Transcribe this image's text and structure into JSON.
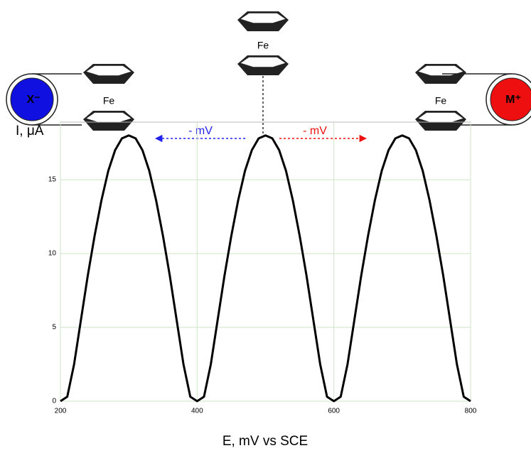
{
  "chart_data": {
    "type": "line",
    "x_label": "E, mV vs SCE",
    "y_label": "I, μA",
    "x": [
      200,
      210,
      220,
      230,
      240,
      250,
      260,
      270,
      280,
      290,
      300,
      310,
      320,
      330,
      340,
      350,
      360,
      370,
      380,
      390,
      400,
      410,
      420,
      430,
      440,
      450,
      460,
      470,
      480,
      490,
      500,
      510,
      520,
      530,
      540,
      550,
      560,
      570,
      580,
      590,
      600,
      610,
      620,
      630,
      640,
      650,
      660,
      670,
      680,
      690,
      700,
      710,
      720,
      730,
      740,
      750,
      760,
      770,
      780,
      790,
      800
    ],
    "series": [
      {
        "color": "#000000",
        "values": [
          0,
          0.3,
          2.5,
          5.5,
          8.5,
          11.2,
          13.6,
          15.6,
          17,
          17.8,
          18,
          17.8,
          17,
          15.6,
          13.6,
          11.2,
          8.5,
          5.5,
          2.5,
          0.3,
          0,
          0.3,
          2.5,
          5.5,
          8.5,
          11.2,
          13.6,
          15.6,
          17,
          17.8,
          18,
          17.8,
          17,
          15.6,
          13.6,
          11.2,
          8.5,
          5.5,
          2.5,
          0.3,
          0,
          0.3,
          2.5,
          5.5,
          8.5,
          11.2,
          13.6,
          15.6,
          17,
          17.8,
          18,
          17.8,
          17,
          15.6,
          13.6,
          11.2,
          8.5,
          5.5,
          2.5,
          0.3,
          0
        ]
      }
    ],
    "xlim": [
      200,
      800
    ],
    "ylim": [
      0,
      18.9
    ],
    "xticks": [
      200,
      400,
      600,
      800
    ],
    "yticks": [
      0,
      5,
      10,
      15
    ],
    "grid": true,
    "annotations": {
      "fe_left": "Fe",
      "fe_center": "Fe",
      "fe_right": "Fe",
      "anion": "X⁻",
      "cation": "M⁺",
      "shift_left": "- mV",
      "shift_right": "- mV"
    }
  }
}
